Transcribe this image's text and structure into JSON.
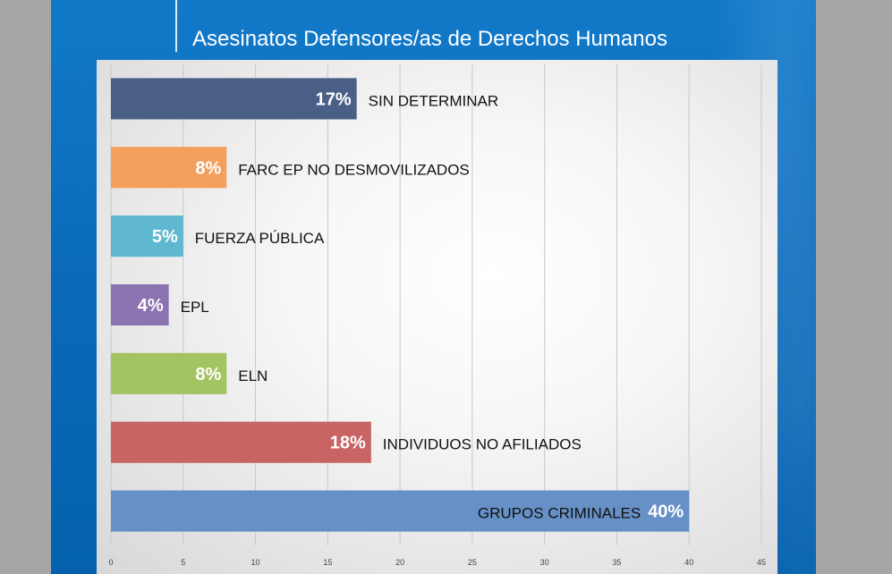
{
  "slide": {
    "title": "Asesinatos Defensores/as de Derechos Humanos"
  },
  "chart_data": {
    "type": "bar",
    "orientation": "horizontal",
    "title": "Asesinatos Defensores/as de Derechos Humanos",
    "xlim": [
      0,
      45
    ],
    "x_ticks": [
      0,
      5,
      10,
      15,
      20,
      25,
      30,
      35,
      40,
      45
    ],
    "grid": "vertical",
    "legend": "none",
    "categories": [
      "SIN DETERMINAR",
      "FARC EP NO DESMOVILIZADOS",
      "FUERZA PÚBLICA",
      "EPL",
      "ELN",
      "INDIVIDUOS NO AFILIADOS",
      "GRUPOS CRIMINALES"
    ],
    "values": [
      17,
      8,
      5,
      4,
      8,
      18,
      40
    ],
    "value_labels": [
      "17%",
      "8%",
      "5%",
      "4%",
      "8%",
      "18%",
      "40%"
    ],
    "colors": [
      "#4a5f86",
      "#f3a05f",
      "#5fb8cf",
      "#8c74b0",
      "#a3c463",
      "#c86464",
      "#6690c6"
    ],
    "label_inside": [
      false,
      false,
      false,
      false,
      false,
      false,
      true
    ]
  }
}
